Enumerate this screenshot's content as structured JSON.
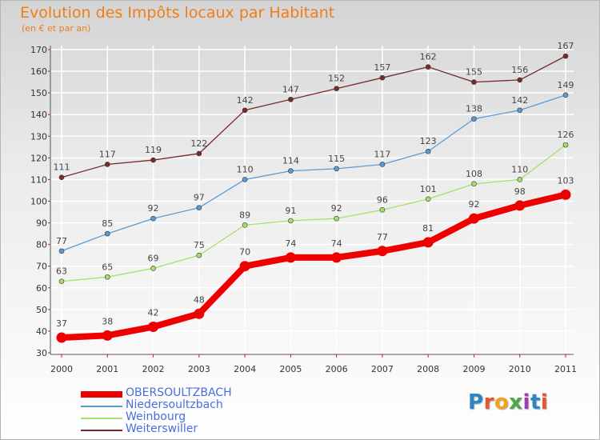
{
  "title": "Evolution des Impôts locaux par Habitant",
  "subtitle": "(en € et par an)",
  "brand": "Proxiti",
  "colors": {
    "title": "#ef7d1a",
    "grid": "#ffffff",
    "legend_text": "#4a6edb"
  },
  "chart_data": {
    "type": "line",
    "title": "Evolution des Impôts locaux par Habitant",
    "subtitle": "(en € et par an)",
    "x": [
      "2000",
      "2001",
      "2002",
      "2003",
      "2004",
      "2005",
      "2006",
      "2007",
      "2008",
      "2009",
      "2010",
      "2011"
    ],
    "ylim": [
      30,
      170
    ],
    "yticks": [
      30,
      40,
      50,
      60,
      70,
      80,
      90,
      100,
      110,
      120,
      130,
      140,
      150,
      160,
      170
    ],
    "grid": true,
    "legend_position": "bottom-left",
    "series": [
      {
        "name": "OBERSOULTZBACH",
        "color": "#ee0000",
        "values": [
          37,
          38,
          42,
          48,
          70,
          74,
          74,
          77,
          81,
          92,
          98,
          103
        ]
      },
      {
        "name": "Niedersoultzbach",
        "color": "#5b9bd5",
        "values": [
          77,
          85,
          92,
          97,
          110,
          114,
          115,
          117,
          123,
          138,
          142,
          149
        ]
      },
      {
        "name": "Weinbourg",
        "color": "#a4e06a",
        "values": [
          63,
          65,
          69,
          75,
          89,
          91,
          92,
          96,
          101,
          108,
          110,
          126
        ]
      },
      {
        "name": "Weiterswiller",
        "color": "#7a2a2a",
        "values": [
          111,
          117,
          119,
          122,
          142,
          147,
          152,
          157,
          162,
          155,
          156,
          167
        ]
      }
    ]
  }
}
